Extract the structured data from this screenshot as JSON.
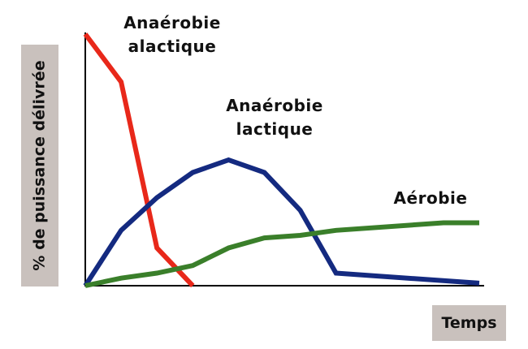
{
  "chart_data": {
    "type": "line",
    "y_label": "% de puissance délivrée",
    "x_label": "Temps",
    "xlim": [
      0,
      11
    ],
    "ylim": [
      0,
      100
    ],
    "series": [
      {
        "name": "Anaérobie alactique",
        "color": "#e8281a",
        "x": [
          0,
          1,
          2,
          3
        ],
        "values": [
          100,
          81,
          15,
          0
        ]
      },
      {
        "name": "Anaérobie lactique",
        "color": "#142a80",
        "x": [
          0,
          1,
          2,
          3,
          4,
          5,
          6,
          7,
          11
        ],
        "values": [
          0,
          22,
          35,
          45,
          50,
          45,
          30,
          5,
          1
        ]
      },
      {
        "name": "Aérobie",
        "color": "#3a7f2a",
        "x": [
          0,
          1,
          2,
          3,
          4,
          5,
          6,
          7,
          10,
          11
        ],
        "values": [
          0,
          3,
          5,
          8,
          15,
          19,
          20,
          22,
          25,
          25
        ]
      }
    ]
  }
}
